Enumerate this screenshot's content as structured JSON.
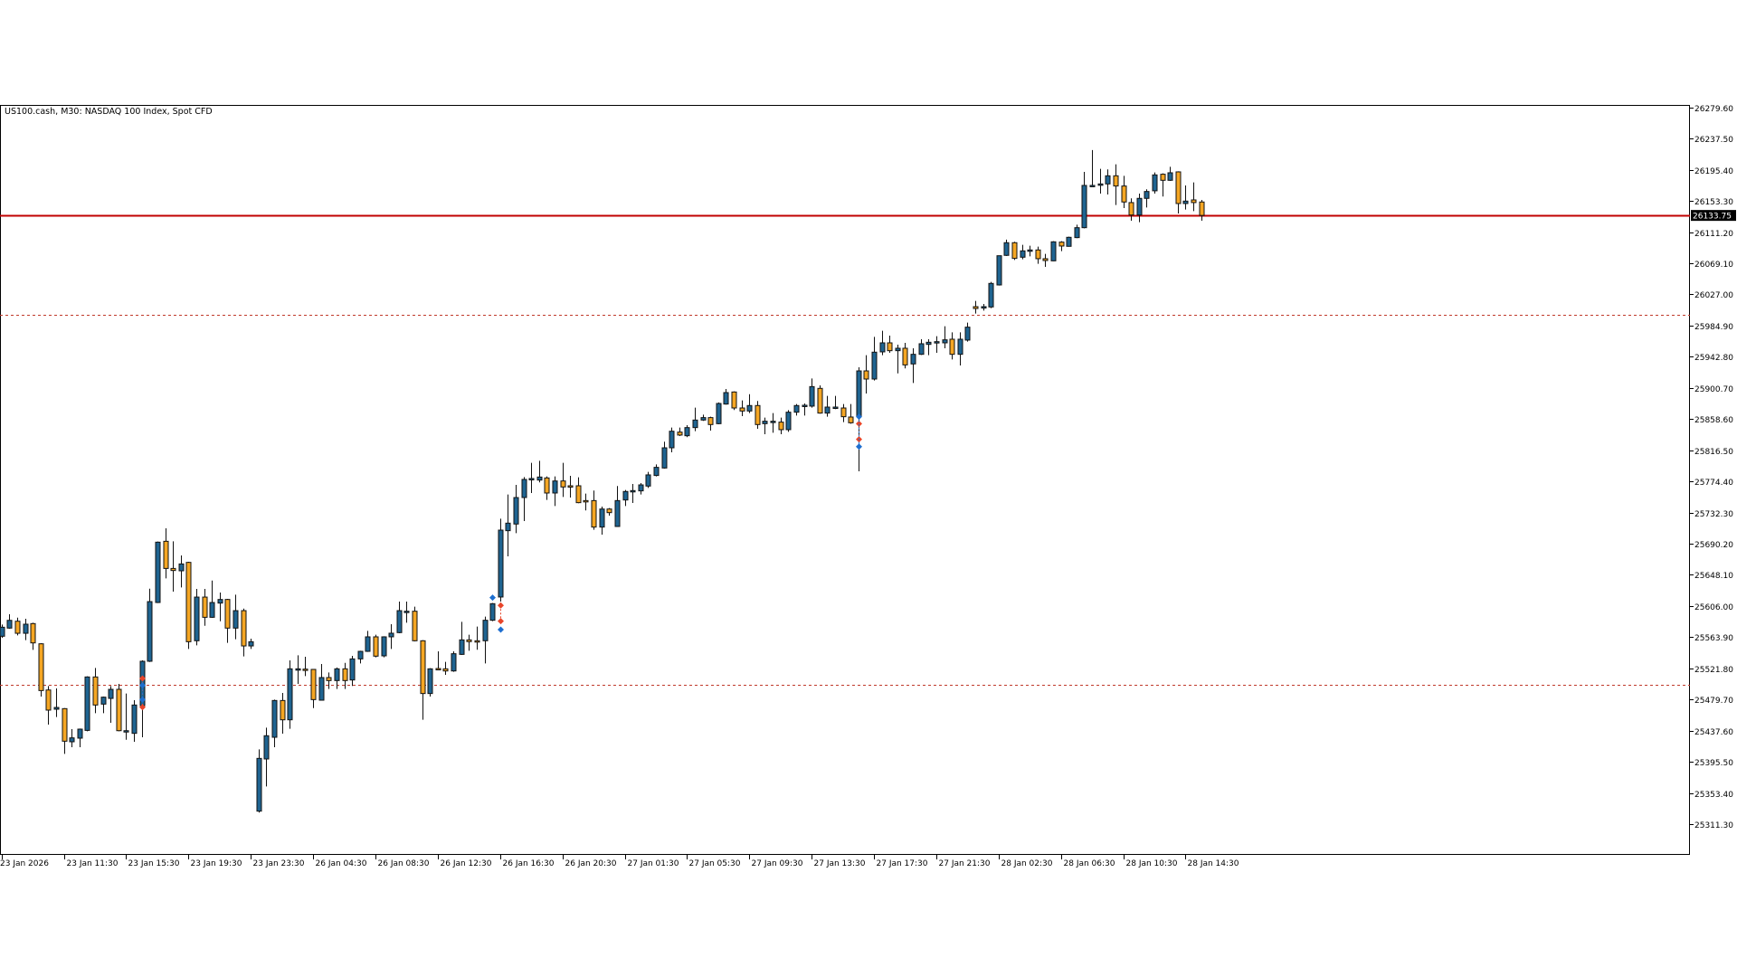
{
  "header": {
    "title": "US100.cash, M30:  NASDAQ 100 Index, Spot CFD"
  },
  "colors": {
    "bull": "#1f6491",
    "bear": "#f5a623",
    "outline": "#111111",
    "current_price_line": "#c00000",
    "level_line": "#c0392b",
    "buy_marker": "#1e6fd0",
    "sell_marker": "#e8452a"
  },
  "current_price": {
    "value": 26133.75,
    "label": "26133.75"
  },
  "price_axis_labels": [
    "26279.60",
    "26237.50",
    "26195.40",
    "26153.30",
    "26111.20",
    "26069.10",
    "26027.00",
    "25984.90",
    "25942.80",
    "25900.70",
    "25858.60",
    "25816.50",
    "25774.40",
    "25732.30",
    "25690.20",
    "25648.10",
    "25606.00",
    "25563.90",
    "25521.80",
    "25479.70",
    "25437.60",
    "25395.50",
    "25353.40",
    "25311.30"
  ],
  "chart_data": {
    "type": "candlestick",
    "timeframe": "M30",
    "symbol": "US100.cash",
    "ylim": [
      25290,
      26285
    ],
    "grid": false,
    "x_tick_labels": [
      {
        "bar": 0,
        "text": "23 Jan 2026"
      },
      {
        "bar": 8,
        "text": "23 Jan 11:30"
      },
      {
        "bar": 16,
        "text": "23 Jan 15:30"
      },
      {
        "bar": 24,
        "text": "23 Jan 19:30"
      },
      {
        "bar": 32,
        "text": "23 Jan 23:30"
      },
      {
        "bar": 40,
        "text": "26 Jan 04:30"
      },
      {
        "bar": 48,
        "text": "26 Jan 08:30"
      },
      {
        "bar": 56,
        "text": "26 Jan 12:30"
      },
      {
        "bar": 64,
        "text": "26 Jan 16:30"
      },
      {
        "bar": 72,
        "text": "26 Jan 20:30"
      },
      {
        "bar": 80,
        "text": "27 Jan 01:30"
      },
      {
        "bar": 88,
        "text": "27 Jan 05:30"
      },
      {
        "bar": 96,
        "text": "27 Jan 09:30"
      },
      {
        "bar": 104,
        "text": "27 Jan 13:30"
      },
      {
        "bar": 112,
        "text": "27 Jan 17:30"
      },
      {
        "bar": 120,
        "text": "27 Jan 21:30"
      },
      {
        "bar": 128,
        "text": "28 Jan 02:30"
      },
      {
        "bar": 136,
        "text": "28 Jan 06:30"
      },
      {
        "bar": 144,
        "text": "28 Jan 10:30"
      },
      {
        "bar": 152,
        "text": "28 Jan 14:30"
      }
    ],
    "levels": [
      {
        "price": 26133.75,
        "style": "solid",
        "kind": "current-price"
      },
      {
        "price": 26000,
        "style": "dashed",
        "kind": "level"
      },
      {
        "price": 25500,
        "style": "dashed",
        "kind": "level"
      }
    ],
    "trade_markers": [
      {
        "bar": 18,
        "prices": [
          25508.1,
          25469.4
        ],
        "side": "sell"
      },
      {
        "bar": 18,
        "prices": [
          25498.8,
          25479.6
        ],
        "side": "buy"
      },
      {
        "bar": 63,
        "prices": [
          25617.4
        ],
        "side": "buy"
      },
      {
        "bar": 64,
        "prices": [
          25606.8,
          25585.6
        ],
        "side": "sell"
      },
      {
        "bar": 64,
        "prices": [
          25574.2
        ],
        "side": "buy"
      },
      {
        "bar": 110,
        "prices": [
          25852.4,
          25831.2
        ],
        "side": "sell"
      },
      {
        "bar": 110,
        "prices": [
          25861.8,
          25821.4
        ],
        "side": "buy"
      }
    ],
    "ohlc_fields": [
      "open",
      "high",
      "low",
      "close"
    ],
    "ohlc": [
      [
        25565.2,
        25581,
        25563,
        25577.4
      ],
      [
        25576.2,
        25594.9,
        25575.4,
        25586.7
      ],
      [
        25585.5,
        25590.4,
        25566.4,
        25569.2
      ],
      [
        25569.2,
        25588.8,
        25559.9,
        25581.5
      ],
      [
        25582.3,
        25583.5,
        25546.8,
        25556.2
      ],
      [
        25555,
        25555.8,
        25483.7,
        25491.8
      ],
      [
        25492.6,
        25497.9,
        25445.8,
        25465.4
      ],
      [
        25466.6,
        25494.7,
        25456,
        25469
      ],
      [
        25467.4,
        25468.2,
        25406.3,
        25423.4
      ],
      [
        25422.6,
        25439.7,
        25415.2,
        25427.9
      ],
      [
        25427.5,
        25440.5,
        25415.2,
        25439.7
      ],
      [
        25438,
        25511,
        25436.8,
        25510.2
      ],
      [
        25510.2,
        25522.4,
        25461.3,
        25472.3
      ],
      [
        25473.5,
        25483.7,
        25461.3,
        25482.9
      ],
      [
        25481.2,
        25497.9,
        25448.2,
        25493.5
      ],
      [
        25493.5,
        25500.8,
        25436.8,
        25437.6
      ],
      [
        25436.4,
        25487.8,
        25425.4,
        25437.6
      ],
      [
        25434,
        25478.8,
        25422.6,
        25472.3
      ],
      [
        25471.5,
        25532.6,
        25428.7,
        25531.4
      ],
      [
        25531.4,
        25629.5,
        25530.5,
        25612
      ],
      [
        25610.8,
        25693.1,
        25610,
        25692.3
      ],
      [
        25693.5,
        25711,
        25643.4,
        25656.8
      ],
      [
        25656.8,
        25693.5,
        25625.5,
        25654
      ],
      [
        25653.6,
        25674.3,
        25631.2,
        25662.9
      ],
      [
        25665,
        25665.8,
        25548,
        25557.8
      ],
      [
        25559.1,
        25629.1,
        25552.9,
        25618.1
      ],
      [
        25618.1,
        25629.1,
        25579.4,
        25590.8
      ],
      [
        25590.8,
        25640.5,
        25590,
        25610.8
      ],
      [
        25610,
        25624.2,
        25585.5,
        25614.9
      ],
      [
        25614.9,
        25615.7,
        25556.2,
        25576.2
      ],
      [
        25576.2,
        25621.4,
        25561.1,
        25599.8
      ],
      [
        25599.8,
        25602.6,
        25537.9,
        25552.1
      ],
      [
        25552.1,
        25561.9,
        25548,
        25557.8
      ],
      [
        25328.9,
        25412.4,
        25326.9,
        25400.2
      ],
      [
        25399.4,
        25441.7,
        25362.3,
        25430.8
      ],
      [
        25428.7,
        25479.6,
        25415.3,
        25478.4
      ],
      [
        25478.4,
        25488.6,
        25433.6,
        25452.3
      ],
      [
        25452.3,
        25532.6,
        25440.1,
        25521.2
      ],
      [
        25520.4,
        25539.5,
        25500.8,
        25521.2
      ],
      [
        25520.8,
        25537.5,
        25511.4,
        25520.4
      ],
      [
        25520.4,
        25521,
        25468.2,
        25479.6
      ],
      [
        25478.8,
        25527.7,
        25478.4,
        25509.4
      ],
      [
        25509.4,
        25516.3,
        25493.9,
        25505.3
      ],
      [
        25505.3,
        25523,
        25493.9,
        25521.2
      ],
      [
        25521.2,
        25529.3,
        25493.9,
        25505.3
      ],
      [
        25506.1,
        25538.7,
        25498,
        25534.6
      ],
      [
        25534.6,
        25545.6,
        25528.5,
        25544.8
      ],
      [
        25544.8,
        25572.5,
        25544,
        25564.4
      ],
      [
        25564.4,
        25567.2,
        25536.7,
        25538.3
      ],
      [
        25538.7,
        25565.2,
        25536.7,
        25564.4
      ],
      [
        25564.4,
        25581.5,
        25548.1,
        25569.3
      ],
      [
        25570.1,
        25612,
        25569.3,
        25599.8
      ],
      [
        25598.4,
        25612,
        25583.5,
        25599
      ],
      [
        25599,
        25605.1,
        25558.3,
        25559.1
      ],
      [
        25559.1,
        25559.9,
        25452.4,
        25487.8
      ],
      [
        25487.8,
        25522,
        25483.7,
        25521.2
      ],
      [
        25521.6,
        25544.8,
        25519.2,
        25521.2
      ],
      [
        25521.2,
        25530.6,
        25513.1,
        25518.3
      ],
      [
        25518.3,
        25544.8,
        25517.1,
        25541.6
      ],
      [
        25540.7,
        25584.7,
        25539.9,
        25560.3
      ],
      [
        25560.3,
        25567.2,
        25545.6,
        25557.9
      ],
      [
        25559.1,
        25578.2,
        25546.9,
        25558.7
      ],
      [
        25559.1,
        25591.7,
        25528.5,
        25586.8
      ],
      [
        25586.8,
        25610,
        25585.6,
        25609.2
      ],
      [
        25618.2,
        25724,
        25612,
        25708.6
      ],
      [
        25707.8,
        25756.7,
        25673.2,
        25718
      ],
      [
        25716.8,
        25769.7,
        25704.5,
        25752.6
      ],
      [
        25752.6,
        25780.3,
        25720.8,
        25777.1
      ],
      [
        25777.1,
        25799.5,
        25758.7,
        25778.3
      ],
      [
        25776.2,
        25802.3,
        25773,
        25780.3
      ],
      [
        25779.1,
        25781.1,
        25749.4,
        25758.7
      ],
      [
        25758.7,
        25781.1,
        25741.2,
        25775
      ],
      [
        25775,
        25799.5,
        25753.4,
        25766.9
      ],
      [
        25768.5,
        25781.9,
        25752.6,
        25768.1
      ],
      [
        25768.5,
        25779.9,
        25744.9,
        25745.7
      ],
      [
        25748.5,
        25757.9,
        25735.1,
        25748.1
      ],
      [
        25748.5,
        25762,
        25709,
        25712.7
      ],
      [
        25712.7,
        25740.4,
        25702.5,
        25737.1
      ],
      [
        25737.1,
        25738.4,
        25728.2,
        25732.2
      ],
      [
        25713.5,
        25768.1,
        25713.1,
        25748.5
      ],
      [
        25749.3,
        25762.8,
        25741.2,
        25760.8
      ],
      [
        25761.2,
        25770.9,
        25745.3,
        25762
      ],
      [
        25761.6,
        25772.2,
        25756.7,
        25769.7
      ],
      [
        25768.1,
        25787.2,
        25765.6,
        25783.2
      ],
      [
        25782.4,
        25797.4,
        25781.1,
        25793.4
      ],
      [
        25792.5,
        25828,
        25791.7,
        25819.8
      ],
      [
        25819.8,
        25847.1,
        25813.7,
        25842.2
      ],
      [
        25841,
        25847.1,
        25835.7,
        25837
      ],
      [
        25836.1,
        25850.4,
        25834.1,
        25847.1
      ],
      [
        25847.1,
        25874,
        25842.2,
        25857.3
      ],
      [
        25857.3,
        25864.6,
        25856.1,
        25860.6
      ],
      [
        25860.6,
        25861.8,
        25843.1,
        25851.2
      ],
      [
        25852.4,
        25881,
        25851.6,
        25879.7
      ],
      [
        25878.9,
        25899.3,
        25878.1,
        25894.4
      ],
      [
        25895.2,
        25896,
        25870.8,
        25873.6
      ],
      [
        25873.6,
        25883.8,
        25862.6,
        25869.5
      ],
      [
        25869.5,
        25892.3,
        25866.7,
        25876.9
      ],
      [
        25876.9,
        25883,
        25845.5,
        25851.2
      ],
      [
        25852.4,
        25860.6,
        25838.1,
        25855.7
      ],
      [
        25854.5,
        25866.7,
        25840.2,
        25855.7
      ],
      [
        25854.5,
        25860.6,
        25838.1,
        25844.3
      ],
      [
        25844.3,
        25870.7,
        25841.4,
        25867.9
      ],
      [
        25867.9,
        25878.9,
        25863.4,
        25876.9
      ],
      [
        25876.5,
        25879.7,
        25863.4,
        25877.3
      ],
      [
        25876.1,
        25913.5,
        25874,
        25902.5
      ],
      [
        25900.1,
        25904.1,
        25865.9,
        25866.7
      ],
      [
        25866.7,
        25889.9,
        25861.8,
        25874.8
      ],
      [
        25873.6,
        25889.9,
        25872,
        25874.8
      ],
      [
        25873.6,
        25878.9,
        25854.5,
        25861.8
      ],
      [
        25861.4,
        25878.9,
        25852.4,
        25853.6
      ],
      [
        25862.6,
        25928.6,
        25788,
        25923.7
      ],
      [
        25923.7,
        25944.9,
        25893.2,
        25912.7
      ],
      [
        25912.7,
        25969.7,
        25910.7,
        25949
      ],
      [
        25949.4,
        25977.9,
        25944.9,
        25961.6
      ],
      [
        25961.6,
        25971.4,
        25948.1,
        25951
      ],
      [
        25951,
        25959.1,
        25920.4,
        25954.3
      ],
      [
        25954.3,
        25961.6,
        25927,
        25931.8
      ],
      [
        25933.1,
        25954.3,
        25907.4,
        25946.1
      ],
      [
        25946.1,
        25966.5,
        25945.3,
        25960.4
      ],
      [
        25959.5,
        25966.5,
        25944.9,
        25962.4
      ],
      [
        25962.4,
        25970.6,
        25948.1,
        25963.2
      ],
      [
        25961.6,
        25984,
        25954.3,
        25965.7
      ],
      [
        25966.5,
        25975.8,
        25939.2,
        25946.1
      ],
      [
        25946.1,
        25975.8,
        25931,
        25966.5
      ],
      [
        25965.3,
        25988.9,
        25963.2,
        25982.8
      ],
      [
        26010.5,
        26018.2,
        26001.1,
        26008
      ],
      [
        26009.3,
        26014.1,
        26005.2,
        26010.5
      ],
      [
        26010.1,
        26043.9,
        26008.5,
        26041.9
      ],
      [
        26039.8,
        26079.3,
        26039,
        26079.3
      ],
      [
        26079.8,
        26101,
        26079,
        26096.9
      ],
      [
        26096.9,
        26098.1,
        26073.6,
        26075.7
      ],
      [
        26077.3,
        26094,
        26074.5,
        26085.9
      ],
      [
        26086.3,
        26092.8,
        26078.5,
        26087.1
      ],
      [
        26087.1,
        26091.6,
        26068.3,
        26075.3
      ],
      [
        26075.3,
        26081.8,
        26064.3,
        26072.8
      ],
      [
        26072.4,
        26098.9,
        26072,
        26098.1
      ],
      [
        26097.7,
        26098.9,
        26085.5,
        26092.4
      ],
      [
        26092,
        26105,
        26091.6,
        26104.2
      ],
      [
        26103.8,
        26121.3,
        26103,
        26117.2
      ],
      [
        26117.2,
        26192.6,
        26116.4,
        26174.3
      ],
      [
        26173.1,
        26222,
        26172.2,
        26174.3
      ],
      [
        26175.1,
        26196.7,
        26163.3,
        26176.3
      ],
      [
        26176.3,
        26195.9,
        26162.1,
        26187.3
      ],
      [
        26187.3,
        26202.8,
        26147.8,
        26173.5
      ],
      [
        26173.5,
        26187.3,
        26143.7,
        26151.9
      ],
      [
        26151.1,
        26156.8,
        26126.6,
        26134.3
      ],
      [
        26134.3,
        26163.3,
        26124.6,
        26156.8
      ],
      [
        26156.8,
        26169,
        26144.5,
        26166.1
      ],
      [
        26167,
        26191.8,
        26163.3,
        26188.5
      ],
      [
        26189.4,
        26190.6,
        26159.2,
        26181.2
      ],
      [
        26181.2,
        26199.5,
        26180.4,
        26191.4
      ],
      [
        26192.6,
        26193.4,
        26136.4,
        26149.8
      ],
      [
        26149.8,
        26174.3,
        26141.7,
        26153.1
      ],
      [
        26154.7,
        26178.4,
        26139.6,
        26151.1
      ],
      [
        26151.9,
        26154.7,
        26126.6,
        26133.75
      ]
    ]
  }
}
